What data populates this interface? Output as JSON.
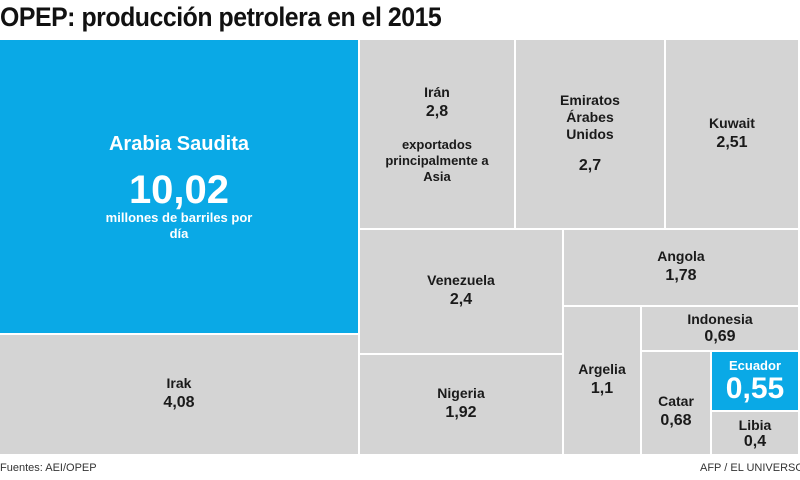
{
  "title": "OPEP: producción petrolera en el 2015",
  "footer": {
    "source": "Fuentes: AEI/OPEP",
    "credit": "AFP / EL UNIVERSO"
  },
  "colors": {
    "highlight": "#0aa9e6",
    "default": "#d4d4d4"
  },
  "chart_data": {
    "type": "treemap",
    "title": "OPEP: producción petrolera en el 2015",
    "unit": "millones de barriles por día",
    "items": [
      {
        "name": "Arabia Saudita",
        "value": 10.02,
        "label": "10,02",
        "note": "millones de barriles por día",
        "highlight": true
      },
      {
        "name": "Irak",
        "value": 4.08,
        "label": "4,08"
      },
      {
        "name": "Irán",
        "value": 2.8,
        "label": "2,8",
        "note": "exportados principalmente a Asia"
      },
      {
        "name": "Emiratos Árabes Unidos",
        "value": 2.7,
        "label": "2,7"
      },
      {
        "name": "Kuwait",
        "value": 2.51,
        "label": "2,51"
      },
      {
        "name": "Venezuela",
        "value": 2.4,
        "label": "2,4"
      },
      {
        "name": "Nigeria",
        "value": 1.92,
        "label": "1,92"
      },
      {
        "name": "Angola",
        "value": 1.78,
        "label": "1,78"
      },
      {
        "name": "Argelia",
        "value": 1.1,
        "label": "1,1"
      },
      {
        "name": "Indonesia",
        "value": 0.69,
        "label": "0,69"
      },
      {
        "name": "Catar",
        "value": 0.68,
        "label": "0,68"
      },
      {
        "name": "Ecuador",
        "value": 0.55,
        "label": "0,55",
        "highlight": true
      },
      {
        "name": "Libia",
        "value": 0.4,
        "label": "0,4"
      }
    ]
  }
}
